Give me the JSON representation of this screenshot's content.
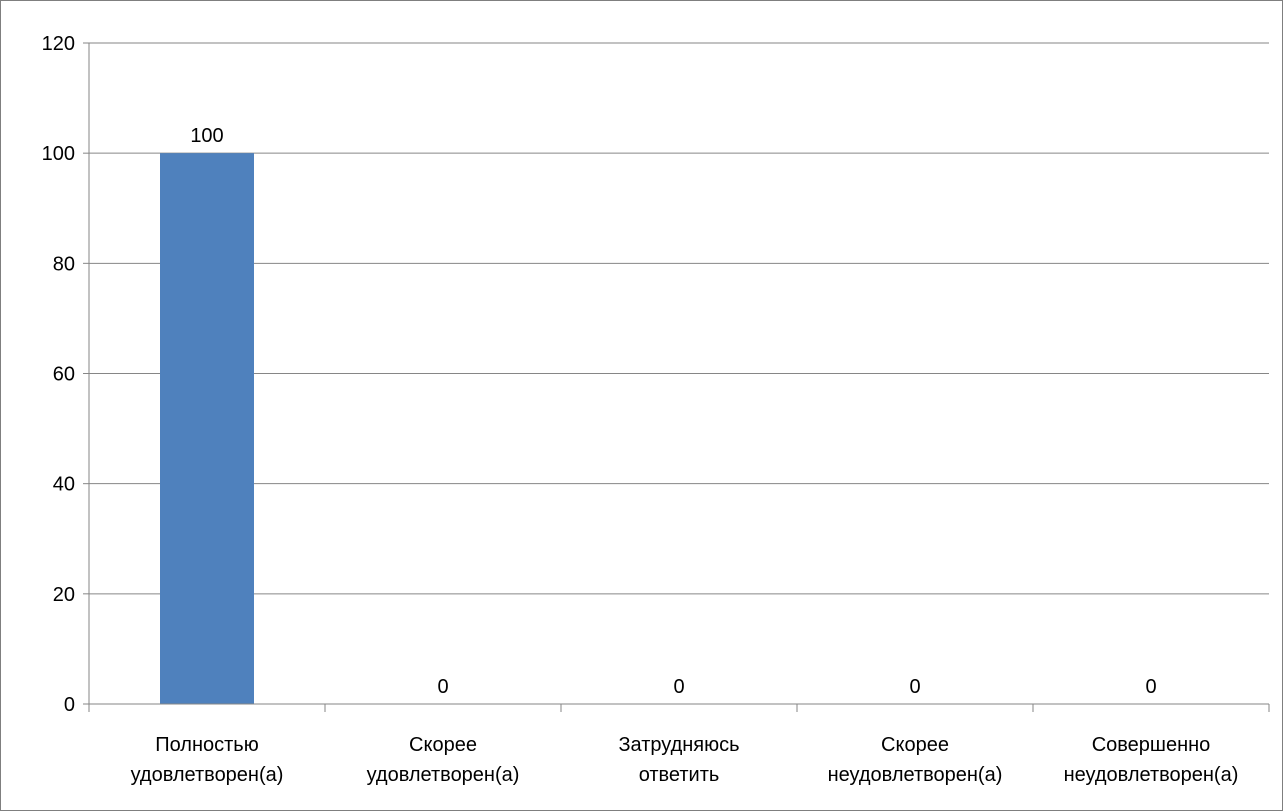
{
  "chart_data": {
    "type": "bar",
    "title": "",
    "xlabel": "",
    "ylabel": "",
    "ylim": [
      0,
      120
    ],
    "yticks": [
      0,
      20,
      40,
      60,
      80,
      100,
      120
    ],
    "grid": true,
    "legend": "none",
    "categories": [
      [
        "Полностью",
        "удовлетворен(а)"
      ],
      [
        "Скорее",
        "удовлетворен(а)"
      ],
      [
        "Затрудняюсь",
        "ответить"
      ],
      [
        "Скорее",
        "неудовлетворен(а)"
      ],
      [
        "Совершенно",
        "неудовлетворен(а)"
      ]
    ],
    "values": [
      100,
      0,
      0,
      0,
      0
    ],
    "data_labels": [
      "100",
      "0",
      "0",
      "0",
      "0"
    ],
    "colors": {
      "bar": "#4f81bd",
      "grid": "#868686",
      "axis": "#868686",
      "border": "#7f7f7f"
    }
  }
}
